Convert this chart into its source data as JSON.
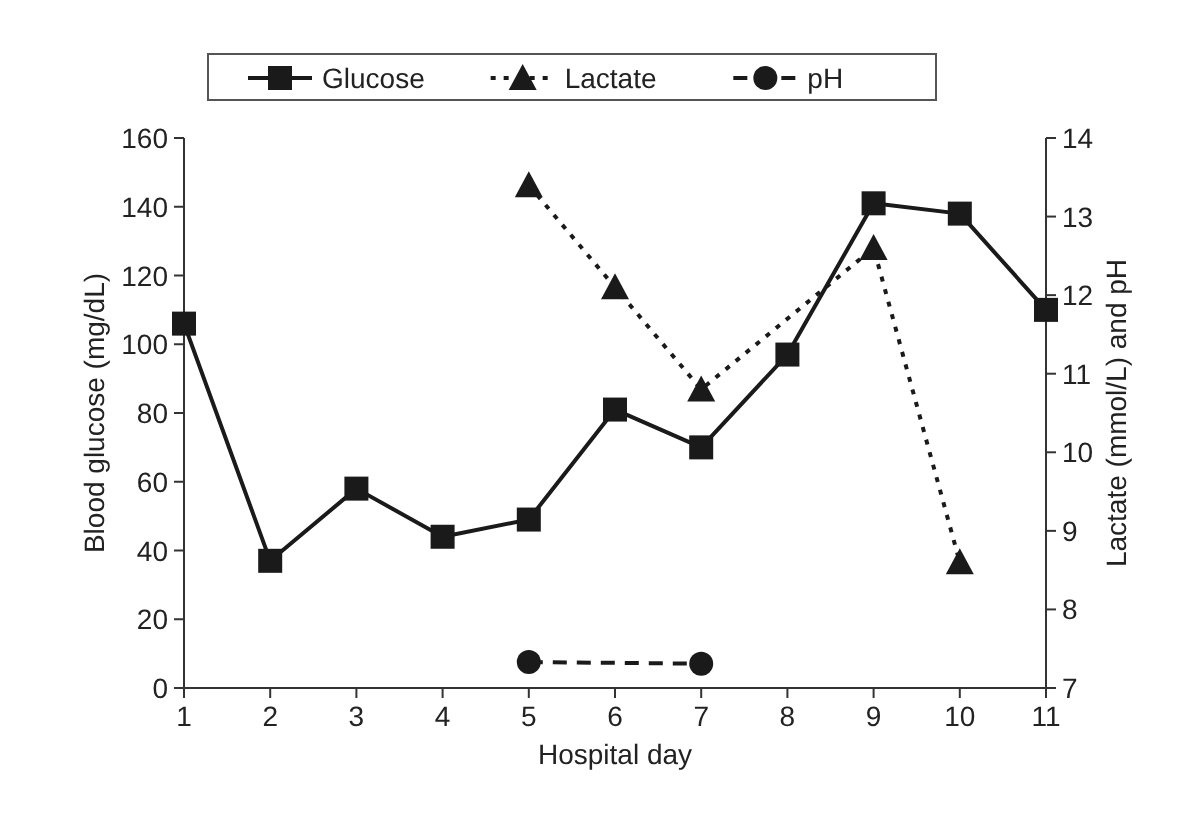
{
  "chart_data": {
    "type": "line",
    "xlabel": "Hospital day",
    "ylabel": "Blood glucose (mg/dL)",
    "y2label": "Lactate (mmol/L) and pH",
    "x": [
      1,
      2,
      3,
      4,
      5,
      6,
      7,
      8,
      9,
      10,
      11
    ],
    "series": [
      {
        "name": "Glucose",
        "color": "#1a1a1a",
        "marker": "square",
        "line_style": "solid",
        "values": [
          106,
          37,
          58,
          44,
          49,
          81,
          70,
          97,
          141,
          138,
          110
        ]
      },
      {
        "name": "Lactate",
        "color": "#1a1a1a",
        "marker": "triangle",
        "line_style": "dotted",
        "axis": "y2",
        "x": [
          5,
          6,
          7,
          9,
          10
        ],
        "values": [
          13.4,
          12.1,
          10.8,
          12.6,
          8.6
        ]
      },
      {
        "name": "pH",
        "color": "#1a1a1a",
        "marker": "circle",
        "line_style": "dashed",
        "axis": "y2",
        "x": [
          5,
          7
        ],
        "values": [
          7.33,
          7.31
        ]
      }
    ],
    "xlim": [
      1,
      11
    ],
    "xticks": [
      1,
      2,
      3,
      4,
      5,
      6,
      7,
      8,
      9,
      10,
      11
    ],
    "ylim": [
      0,
      160
    ],
    "yticks": [
      0,
      20,
      40,
      60,
      80,
      100,
      120,
      140,
      160
    ],
    "y2lim": [
      7,
      14
    ],
    "y2ticks": [
      7,
      8,
      9,
      10,
      11,
      12,
      13,
      14
    ],
    "grid": false,
    "legend": "top"
  }
}
